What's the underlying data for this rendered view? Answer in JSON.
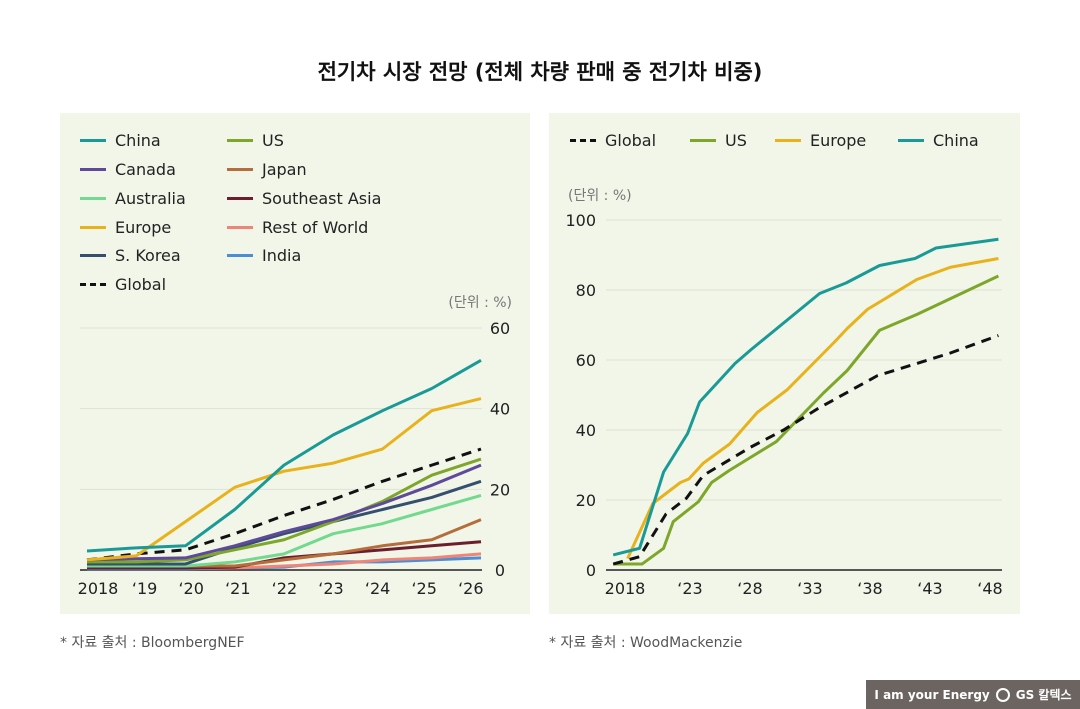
{
  "title": "전기차 시장 전망 (전체 차량 판매 중 전기차 비중)",
  "footnotes": {
    "left": "* 자료 출처 : BloombergNEF",
    "right": "* 자료 출처 : WoodMackenzie"
  },
  "logo": {
    "slogan": "I am your Energy",
    "brand": "GS 칼텍스"
  },
  "chart_data": [
    {
      "type": "line",
      "unit_label": "(단위 : %)",
      "categories": [
        "2018",
        "‘19",
        "‘20",
        "‘21",
        "‘22",
        "‘23",
        "‘24",
        "‘25",
        "‘26"
      ],
      "ylim": [
        0,
        60
      ],
      "yticks": [
        "0",
        "20",
        "40",
        "60"
      ],
      "grid": true,
      "legend_position": "top-left",
      "series": [
        {
          "name": "China",
          "color": "#1a9a96",
          "values": [
            4.7,
            5.5,
            6,
            15,
            26,
            33.5,
            39.5,
            45,
            52
          ]
        },
        {
          "name": "US",
          "color": "#7ea62a",
          "values": [
            2,
            2,
            2.5,
            5,
            7.5,
            12,
            17,
            23.5,
            27.5
          ]
        },
        {
          "name": "Canada",
          "color": "#5e4a99",
          "values": [
            2.5,
            2.8,
            3,
            6,
            9.5,
            12.5,
            16.5,
            21,
            26
          ]
        },
        {
          "name": "Japan",
          "color": "#b56d3b",
          "values": [
            1,
            1,
            1,
            1,
            2.5,
            4,
            6,
            7.5,
            12.5
          ]
        },
        {
          "name": "Australia",
          "color": "#72d98e",
          "values": [
            1,
            1,
            1,
            2,
            4,
            9,
            11.5,
            15,
            18.5
          ]
        },
        {
          "name": "Southeast Asia",
          "color": "#6b1f2e",
          "values": [
            0.5,
            0.5,
            0.5,
            0.7,
            3,
            4,
            5,
            6,
            7
          ]
        },
        {
          "name": "Europe",
          "color": "#e8b21c",
          "values": [
            2.5,
            3.5,
            12,
            20.5,
            24.5,
            26.5,
            30,
            39.5,
            42.5
          ]
        },
        {
          "name": "Rest of World",
          "color": "#ef8577",
          "values": [
            0.5,
            0.5,
            0.5,
            0.5,
            1,
            1.5,
            2.5,
            3,
            4
          ]
        },
        {
          "name": "S. Korea",
          "color": "#34506e",
          "values": [
            1.5,
            1.5,
            1.5,
            5.5,
            9,
            12,
            15,
            18,
            22
          ]
        },
        {
          "name": "India",
          "color": "#4a8fd6",
          "values": [
            0.3,
            0.3,
            0.3,
            0.5,
            0.7,
            2,
            2,
            2.5,
            3
          ]
        },
        {
          "name": "Global",
          "color": "#111111",
          "dashed": true,
          "values": [
            2.5,
            4,
            5,
            9,
            13.5,
            17.5,
            22,
            26,
            30
          ]
        }
      ]
    },
    {
      "type": "line",
      "unit_label": "(단위 : %)",
      "xticks": [
        {
          "year": 2018,
          "label": "2018"
        },
        {
          "year": 2023,
          "label": "‘23"
        },
        {
          "year": 2028,
          "label": "‘28"
        },
        {
          "year": 2033,
          "label": "‘33"
        },
        {
          "year": 2038,
          "label": "‘38"
        },
        {
          "year": 2043,
          "label": "‘43"
        },
        {
          "year": 2048,
          "label": "‘48"
        }
      ],
      "ylim": [
        0,
        100
      ],
      "yticks": [
        "0",
        "20",
        "40",
        "60",
        "80",
        "100"
      ],
      "grid": true,
      "legend_position": "top",
      "series": [
        {
          "name": "Global",
          "color": "#111111",
          "dashed": true,
          "points": [
            [
              2016.6,
              1.7
            ],
            [
              2018.8,
              3.8
            ],
            [
              2021,
              16
            ],
            [
              2022.7,
              20.5
            ],
            [
              2024.1,
              27
            ],
            [
              2028,
              35
            ],
            [
              2030.8,
              40
            ],
            [
              2033.6,
              46
            ],
            [
              2038.6,
              55.5
            ],
            [
              2041.9,
              59
            ],
            [
              2044.7,
              62
            ],
            [
              2048.7,
              67
            ]
          ]
        },
        {
          "name": "US",
          "color": "#7ea62a",
          "points": [
            [
              2016.6,
              1.7
            ],
            [
              2019,
              1.7
            ],
            [
              2020.8,
              6.2
            ],
            [
              2021.6,
              13.8
            ],
            [
              2023.7,
              19.5
            ],
            [
              2024.8,
              25
            ],
            [
              2026.3,
              28.5
            ],
            [
              2030.2,
              36.7
            ],
            [
              2034.1,
              50.5
            ],
            [
              2036.1,
              57
            ],
            [
              2038.8,
              68.5
            ],
            [
              2041.9,
              73
            ],
            [
              2048.7,
              84
            ]
          ]
        },
        {
          "name": "Europe",
          "color": "#e8b21c",
          "points": [
            [
              2017.8,
              3.3
            ],
            [
              2019.9,
              19
            ],
            [
              2022.2,
              25
            ],
            [
              2022.9,
              26
            ],
            [
              2024.1,
              30.5
            ],
            [
              2026.3,
              36
            ],
            [
              2028.6,
              45
            ],
            [
              2031.1,
              51.5
            ],
            [
              2035,
              65
            ],
            [
              2036.1,
              69
            ],
            [
              2037.8,
              74.5
            ],
            [
              2041.9,
              83
            ],
            [
              2044.7,
              86.5
            ],
            [
              2048.7,
              89
            ]
          ]
        },
        {
          "name": "China",
          "color": "#1a9a96",
          "points": [
            [
              2016.6,
              4.3
            ],
            [
              2018.8,
              6.2
            ],
            [
              2020.8,
              28
            ],
            [
              2022.8,
              39
            ],
            [
              2023.8,
              48
            ],
            [
              2026.75,
              59
            ],
            [
              2028.1,
              63
            ],
            [
              2033.8,
              79
            ],
            [
              2036,
              82
            ],
            [
              2038.8,
              87
            ],
            [
              2041.75,
              89
            ],
            [
              2043.5,
              92
            ],
            [
              2048.7,
              94.5
            ]
          ]
        }
      ]
    }
  ]
}
